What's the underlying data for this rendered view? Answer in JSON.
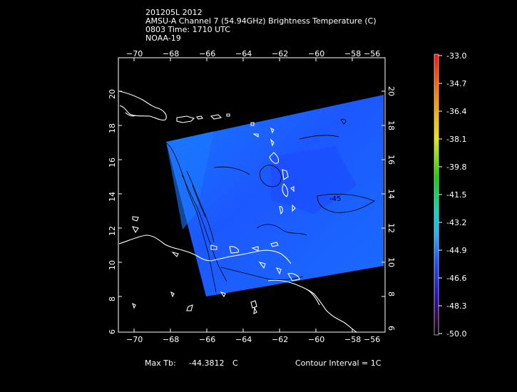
{
  "header": {
    "line1": "201205L 2012",
    "line2": "AMSU-A Channel 7 (54.94GHz) Brightness Temperature (C)",
    "line3": "0803 Time: 1710 UTC",
    "line4": "NOAA-19"
  },
  "map": {
    "lon_ticks": [
      "−70",
      "−68",
      "−66",
      "−64",
      "−62",
      "−60",
      "−58",
      "−56"
    ],
    "lat_ticks": [
      "8",
      "10",
      "12",
      "14",
      "16",
      "18",
      "20"
    ],
    "lat_ticks_bottom_partial": "6",
    "contour_label": "-45",
    "colors": {
      "swath_blue": "#1b4cff",
      "swath_light": "#1a7dff",
      "coast": "#ffffff",
      "contour": "#000000"
    }
  },
  "colorbar": {
    "labels": [
      "-33.0",
      "-34.7",
      "-36.4",
      "-38.1",
      "-39.8",
      "-41.5",
      "-43.2",
      "-44.9",
      "-46.6",
      "-48.3",
      "-50.0"
    ]
  },
  "footer": {
    "max_label": "Max Tb:",
    "max_value": "-44.3812",
    "max_unit": "C",
    "contour_interval": "Contour Interval = 1C"
  }
}
